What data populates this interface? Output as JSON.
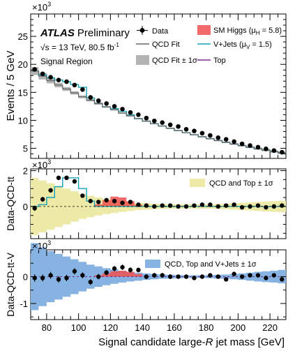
{
  "chart_data": {
    "type": "line",
    "x_axis": {
      "label_pre": "Signal candidate large-",
      "label_var": "R",
      "label_post": " jet mass [GeV]",
      "range": [
        70,
        230
      ],
      "ticks": [
        80,
        100,
        120,
        140,
        160,
        180,
        200,
        220
      ]
    },
    "annotations": {
      "atlas": "ATLAS",
      "preliminary": "Preliminary",
      "energy": "√s = 13 TeV, 80.5 fb",
      "energy_sup": "-1",
      "region": "Signal Region"
    },
    "panels": [
      {
        "id": "main",
        "ylabel": "Events / 5 GeV",
        "exponent_base": "×10",
        "exponent_power": "3",
        "ylim": [
          3.2,
          29
        ],
        "yticks": [
          5,
          10,
          15,
          20,
          25
        ],
        "legend": {
          "data": "Data",
          "qcd_fit": "QCD Fit",
          "qcd_band": "QCD Fit ± 1σ",
          "higgs": "SM Higgs (μ",
          "higgs_sub": "H",
          "higgs_tail": " = 5.8)",
          "vjets": "V+Jets (μ",
          "vjets_sub": "V",
          "vjets_tail": " = 1.5)",
          "top": "Top"
        },
        "bin_edges": [
          70,
          75,
          80,
          85,
          90,
          95,
          100,
          105,
          110,
          115,
          120,
          125,
          130,
          135,
          140,
          145,
          150,
          155,
          160,
          165,
          170,
          175,
          180,
          185,
          190,
          195,
          200,
          205,
          210,
          215,
          220,
          225,
          230
        ],
        "qcd_fit": [
          18.8,
          17.9,
          17.1,
          16.3,
          15.6,
          14.9,
          14.2,
          13.6,
          13.0,
          12.4,
          11.9,
          11.3,
          10.8,
          10.3,
          9.85,
          9.4,
          8.98,
          8.57,
          8.17,
          7.79,
          7.42,
          7.06,
          6.72,
          6.39,
          6.07,
          5.77,
          5.48,
          5.2,
          4.93,
          4.68,
          4.43,
          4.2
        ],
        "total": [
          18.8,
          18.1,
          17.6,
          17.2,
          16.9,
          16.4,
          15.9,
          14.0,
          13.0,
          12.4,
          12.1,
          11.6,
          11.0,
          10.3,
          9.85,
          9.4,
          8.98,
          8.57,
          8.17,
          7.79,
          7.42,
          7.06,
          6.72,
          6.39,
          6.07,
          5.77,
          5.48,
          5.2,
          4.93,
          4.68,
          4.43,
          4.2
        ],
        "qcd_unc": [
          0.7,
          0.6,
          0.5,
          0.4,
          0.35,
          0.3,
          0.25,
          0.2,
          0.2,
          0.15,
          0.15,
          0.12,
          0.12,
          0.1,
          0.1,
          0.1,
          0.1,
          0.1,
          0.1,
          0.1,
          0.1,
          0.1,
          0.12,
          0.12,
          0.12,
          0.15,
          0.15,
          0.15,
          0.2,
          0.2,
          0.2,
          0.2
        ],
        "data_x": [
          72.5,
          77.5,
          82.5,
          87.5,
          92.5,
          97.5,
          102.5,
          107.5,
          112.5,
          117.5,
          122.5,
          127.5,
          132.5,
          137.5,
          142.5,
          147.5,
          152.5,
          157.5,
          162.5,
          167.5,
          172.5,
          177.5,
          182.5,
          187.5,
          192.5,
          197.5,
          202.5,
          207.5,
          212.5,
          217.5,
          222.5,
          227.5
        ],
        "data_y": [
          19.1,
          18.3,
          17.7,
          17.2,
          16.9,
          16.3,
          15.5,
          14.1,
          13.5,
          13.0,
          12.5,
          12.0,
          11.4,
          11.0,
          10.4,
          9.9,
          9.6,
          9.2,
          8.9,
          8.4,
          8.1,
          7.7,
          7.3,
          6.9,
          6.6,
          6.2,
          5.8,
          5.5,
          5.2,
          4.9,
          4.6,
          4.3
        ]
      },
      {
        "id": "sub1",
        "ylabel": "Data-QCD-tt",
        "exponent_base": "×10",
        "exponent_power": "3",
        "ylim": [
          -1.8,
          2.1
        ],
        "yticks": [
          0,
          2
        ],
        "legend": {
          "band": "QCD and Top ± 1σ"
        },
        "vjets": [
          0,
          0.1,
          0.5,
          1.1,
          1.6,
          1.6,
          1.0,
          0.3,
          0,
          0,
          0,
          0,
          0,
          0,
          0,
          0,
          0,
          0,
          0,
          0,
          0,
          0,
          0,
          0,
          0,
          0,
          0,
          0,
          0,
          0,
          0,
          0
        ],
        "higgs": [
          0,
          0,
          0,
          0,
          0,
          0,
          0,
          0,
          0.12,
          0.35,
          0.55,
          0.5,
          0.3,
          0.1,
          0,
          0,
          0,
          0,
          0,
          0,
          0,
          0,
          0,
          0,
          0,
          0,
          0,
          0,
          0,
          0,
          0,
          0
        ],
        "band_unc": [
          1.6,
          1.45,
          1.3,
          1.15,
          1.0,
          0.85,
          0.7,
          0.6,
          0.5,
          0.42,
          0.36,
          0.3,
          0.25,
          0.2,
          0.18,
          0.15,
          0.14,
          0.12,
          0.12,
          0.12,
          0.12,
          0.12,
          0.12,
          0.14,
          0.15,
          0.18,
          0.2,
          0.22,
          0.25,
          0.28,
          0.3,
          0.32
        ],
        "data_y": [
          -0.1,
          0.4,
          0.9,
          1.6,
          1.6,
          1.4,
          0.6,
          0.3,
          0.25,
          0.35,
          0.3,
          0.2,
          0.25,
          0.1,
          0.05,
          0.0,
          0.05,
          0.05,
          0.0,
          0.0,
          0.05,
          0.1,
          0.1,
          0.0,
          0.05,
          0.1,
          -0.05,
          0.0,
          0.05,
          -0.05,
          0.0,
          0.05
        ],
        "data_err": [
          0.15,
          0.14,
          0.13,
          0.12,
          0.12,
          0.12,
          0.11,
          0.11,
          0.1,
          0.1,
          0.1,
          0.1,
          0.1,
          0.09,
          0.09,
          0.09,
          0.09,
          0.09,
          0.08,
          0.08,
          0.08,
          0.08,
          0.08,
          0.08,
          0.07,
          0.07,
          0.07,
          0.07,
          0.07,
          0.07,
          0.07,
          0.06
        ]
      },
      {
        "id": "sub2",
        "ylabel": "Data-QCD-tt-V",
        "exponent_base": "×10",
        "exponent_power": "3",
        "ylim": [
          -1.6,
          1.0
        ],
        "yticks": [
          -1,
          0
        ],
        "legend": {
          "band": "QCD, Top and V+Jets ± 1σ"
        },
        "higgs": [
          0,
          0,
          0,
          0,
          0,
          0,
          0,
          0,
          0.05,
          0.12,
          0.2,
          0.22,
          0.18,
          0.1,
          0,
          0,
          0,
          0,
          0,
          0,
          0,
          0,
          0,
          0,
          0,
          0,
          0,
          0,
          0,
          0,
          0,
          0
        ],
        "band_unc": [
          1.25,
          1.1,
          0.95,
          0.85,
          0.75,
          0.65,
          0.55,
          0.45,
          0.38,
          0.32,
          0.27,
          0.22,
          0.18,
          0.15,
          0.12,
          0.1,
          0.08,
          0.07,
          0.06,
          0.05,
          0.05,
          0.05,
          0.06,
          0.07,
          0.08,
          0.1,
          0.12,
          0.15,
          0.18,
          0.2,
          0.22,
          0.25
        ],
        "data_y": [
          -0.05,
          -0.05,
          0.05,
          -0.1,
          -0.05,
          0.2,
          0.05,
          -0.2,
          0.0,
          0.15,
          0.3,
          0.35,
          0.25,
          0.25,
          0.0,
          0.05,
          0.05,
          0.0,
          0.0,
          0.0,
          -0.05,
          0.0,
          0.05,
          0.0,
          -0.1,
          0.1,
          0.0,
          0.05,
          0.05,
          -0.05,
          0.05,
          -0.1
        ],
        "data_err": [
          0.14,
          0.13,
          0.13,
          0.12,
          0.12,
          0.12,
          0.11,
          0.11,
          0.1,
          0.1,
          0.1,
          0.1,
          0.1,
          0.09,
          0.09,
          0.09,
          0.09,
          0.09,
          0.08,
          0.08,
          0.08,
          0.08,
          0.08,
          0.08,
          0.07,
          0.07,
          0.07,
          0.07,
          0.07,
          0.07,
          0.07,
          0.06
        ]
      }
    ]
  },
  "colors": {
    "data": "#000000",
    "qcd_fit": "#666666",
    "qcd_band": "#b3b3b3",
    "higgs": "#f0504f",
    "vjets": "#17a2b8",
    "top": "#7b2d8e",
    "yellow_band": "#ede9a6",
    "blue_band": "#87b3e3"
  }
}
